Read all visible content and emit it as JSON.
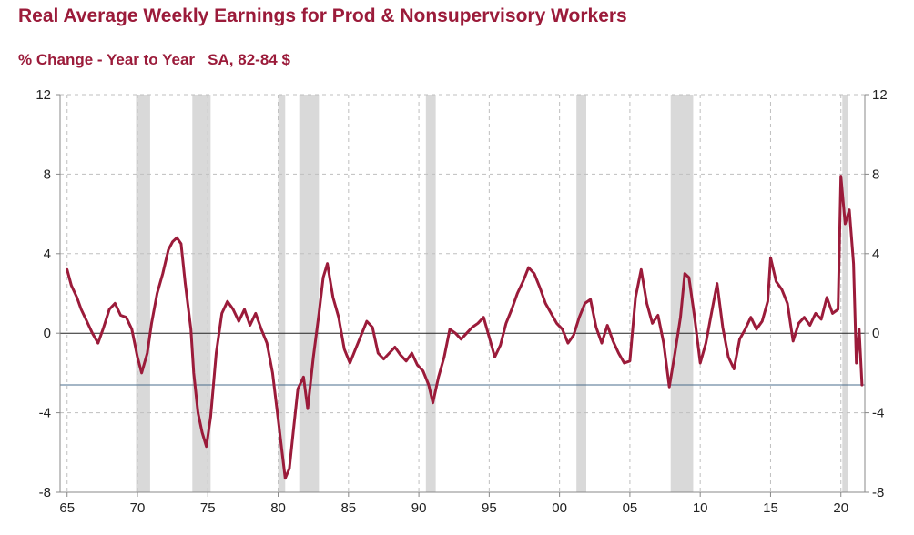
{
  "colors": {
    "title": "#9b1b3a",
    "series": "#9b1b3a",
    "recession": "#d9d9d9",
    "reference": "#4a6d8c",
    "grid": "#bfbfbf"
  },
  "chart_data": {
    "type": "line",
    "title": "Real Average Weekly Earnings for Prod & Nonsupervisory Workers",
    "subtitle": "% Change - Year to Year   SA, 82-84 $",
    "xlabel": "",
    "ylabel": "",
    "xlim": [
      1964.5,
      2021.7
    ],
    "ylim": [
      -8,
      12
    ],
    "yticks": [
      -8,
      -4,
      0,
      4,
      8,
      12
    ],
    "ytick_labels": [
      "-8",
      "-4",
      "0",
      "4",
      "8",
      "12"
    ],
    "xticks": [
      1965,
      1970,
      1975,
      1980,
      1985,
      1990,
      1995,
      2000,
      2005,
      2010,
      2015,
      2020
    ],
    "xtick_labels": [
      "65",
      "70",
      "75",
      "80",
      "85",
      "90",
      "95",
      "00",
      "05",
      "10",
      "15",
      "20"
    ],
    "grid": true,
    "legend": "none",
    "reference_lines": [
      0,
      -2.6
    ],
    "recessions": [
      [
        1969.9,
        1970.9
      ],
      [
        1973.9,
        1975.2
      ],
      [
        1980.0,
        1980.5
      ],
      [
        1981.5,
        1982.9
      ],
      [
        1990.5,
        1991.2
      ],
      [
        2001.2,
        2001.9
      ],
      [
        2007.9,
        2009.5
      ],
      [
        2020.1,
        2020.4
      ]
    ],
    "series": [
      {
        "name": "",
        "x": [
          1965.0,
          1965.3,
          1965.7,
          1966.0,
          1966.4,
          1966.8,
          1967.2,
          1967.6,
          1968.0,
          1968.4,
          1968.8,
          1969.2,
          1969.6,
          1970.0,
          1970.3,
          1970.7,
          1971.0,
          1971.4,
          1971.8,
          1972.2,
          1972.5,
          1972.8,
          1973.1,
          1973.4,
          1973.8,
          1974.0,
          1974.3,
          1974.6,
          1974.9,
          1975.2,
          1975.6,
          1976.0,
          1976.4,
          1976.8,
          1977.2,
          1977.6,
          1978.0,
          1978.4,
          1978.8,
          1979.2,
          1979.6,
          1980.0,
          1980.2,
          1980.5,
          1980.8,
          1981.1,
          1981.4,
          1981.8,
          1982.1,
          1982.5,
          1982.9,
          1983.2,
          1983.5,
          1983.9,
          1984.3,
          1984.7,
          1985.1,
          1985.5,
          1985.9,
          1986.3,
          1986.7,
          1987.1,
          1987.5,
          1987.9,
          1988.3,
          1988.7,
          1989.1,
          1989.5,
          1989.9,
          1990.3,
          1990.7,
          1991.0,
          1991.4,
          1991.8,
          1992.2,
          1992.6,
          1993.0,
          1993.4,
          1993.8,
          1994.2,
          1994.6,
          1995.0,
          1995.4,
          1995.8,
          1996.2,
          1996.6,
          1997.0,
          1997.4,
          1997.8,
          1998.2,
          1998.6,
          1999.0,
          1999.4,
          1999.8,
          2000.2,
          2000.6,
          2001.0,
          2001.4,
          2001.8,
          2002.2,
          2002.6,
          2003.0,
          2003.4,
          2003.8,
          2004.2,
          2004.6,
          2005.0,
          2005.4,
          2005.8,
          2006.2,
          2006.6,
          2007.0,
          2007.4,
          2007.8,
          2008.2,
          2008.6,
          2008.9,
          2009.2,
          2009.6,
          2010.0,
          2010.4,
          2010.8,
          2011.2,
          2011.6,
          2012.0,
          2012.4,
          2012.8,
          2013.2,
          2013.6,
          2014.0,
          2014.4,
          2014.8,
          2015.0,
          2015.4,
          2015.8,
          2016.2,
          2016.6,
          2017.0,
          2017.4,
          2017.8,
          2018.2,
          2018.6,
          2019.0,
          2019.4,
          2019.8,
          2020.0,
          2020.3,
          2020.6,
          2020.9,
          2021.1,
          2021.3,
          2021.5
        ],
        "y": [
          3.2,
          2.4,
          1.8,
          1.2,
          0.6,
          0.0,
          -0.5,
          0.3,
          1.2,
          1.5,
          0.9,
          0.8,
          0.2,
          -1.2,
          -2.0,
          -1.0,
          0.5,
          2.0,
          3.0,
          4.2,
          4.6,
          4.8,
          4.5,
          2.5,
          0.2,
          -2.0,
          -4.0,
          -5.0,
          -5.7,
          -4.2,
          -1.0,
          1.0,
          1.6,
          1.2,
          0.6,
          1.2,
          0.4,
          1.0,
          0.2,
          -0.5,
          -2.0,
          -4.3,
          -5.5,
          -7.3,
          -6.8,
          -4.8,
          -2.8,
          -2.2,
          -3.8,
          -1.2,
          1.0,
          2.8,
          3.5,
          1.8,
          0.8,
          -0.8,
          -1.5,
          -0.8,
          -0.1,
          0.6,
          0.3,
          -1.0,
          -1.3,
          -1.0,
          -0.7,
          -1.1,
          -1.4,
          -1.0,
          -1.6,
          -1.9,
          -2.6,
          -3.5,
          -2.2,
          -1.2,
          0.2,
          0.0,
          -0.3,
          0.0,
          0.3,
          0.5,
          0.8,
          -0.2,
          -1.2,
          -0.6,
          0.5,
          1.2,
          2.0,
          2.6,
          3.3,
          3.0,
          2.3,
          1.5,
          1.0,
          0.5,
          0.2,
          -0.5,
          -0.1,
          0.8,
          1.5,
          1.7,
          0.3,
          -0.5,
          0.4,
          -0.4,
          -1.0,
          -1.5,
          -1.4,
          1.8,
          3.2,
          1.5,
          0.5,
          0.9,
          -0.5,
          -2.7,
          -1.0,
          0.8,
          3.0,
          2.8,
          0.8,
          -1.5,
          -0.5,
          1.0,
          2.5,
          0.3,
          -1.2,
          -1.8,
          -0.3,
          0.2,
          0.8,
          0.2,
          0.6,
          1.6,
          3.8,
          2.6,
          2.2,
          1.5,
          -0.4,
          0.5,
          0.8,
          0.4,
          1.0,
          0.7,
          1.8,
          1.0,
          1.2,
          7.9,
          5.5,
          6.2,
          3.5,
          -1.5,
          0.2,
          -2.6
        ]
      }
    ]
  }
}
